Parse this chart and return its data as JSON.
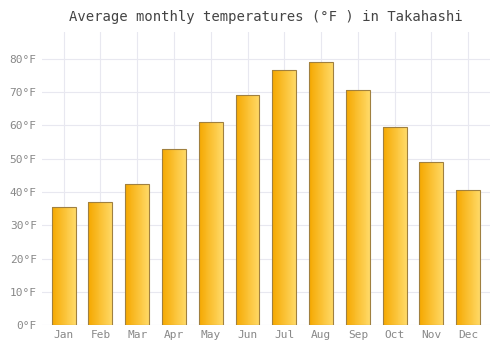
{
  "title": "Average monthly temperatures (°F ) in Takahashi",
  "months": [
    "Jan",
    "Feb",
    "Mar",
    "Apr",
    "May",
    "Jun",
    "Jul",
    "Aug",
    "Sep",
    "Oct",
    "Nov",
    "Dec"
  ],
  "values": [
    35.5,
    37.0,
    42.5,
    53.0,
    61.0,
    69.0,
    76.5,
    79.0,
    70.5,
    59.5,
    49.0,
    40.5
  ],
  "ylim": [
    0,
    88
  ],
  "yticks": [
    0,
    10,
    20,
    30,
    40,
    50,
    60,
    70,
    80
  ],
  "ytick_labels": [
    "0°F",
    "10°F",
    "20°F",
    "30°F",
    "40°F",
    "50°F",
    "60°F",
    "70°F",
    "80°F"
  ],
  "background_color": "#ffffff",
  "grid_color": "#e8e8f0",
  "bar_color_left": "#F5A800",
  "bar_color_right": "#FFD966",
  "bar_edge_color": "#A08040",
  "title_fontsize": 10,
  "tick_fontsize": 8,
  "tick_color": "#888888",
  "bar_width": 0.65,
  "n_gradient_steps": 50
}
